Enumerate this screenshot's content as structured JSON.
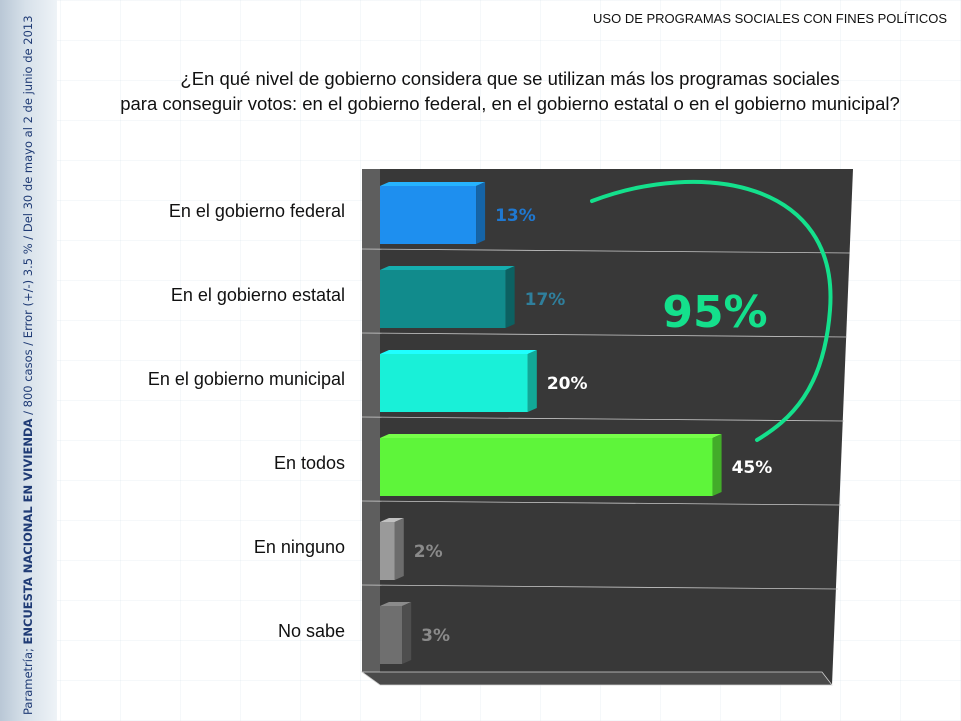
{
  "header": {
    "title": "USO DE PROGRAMAS SOCIALES CON FINES POLÍTICOS"
  },
  "sidebar": {
    "source_prefix": "Parametría; ",
    "survey_name": "ENCUESTA NACIONAL EN VIVIENDA",
    "details": " / 800 casos / Error (+/-) 3.5 % / Del 30 de mayo al 2  de junio de 2013"
  },
  "question": {
    "line1": "¿En qué nivel de gobierno considera que se utilizan más los programas sociales",
    "line2": "para conseguir votos: en el gobierno federal, en el gobierno estatal o en el gobierno municipal?"
  },
  "chart_data": {
    "type": "bar",
    "orientation": "horizontal",
    "categories": [
      "En el gobierno federal",
      "En el gobierno estatal",
      "En el gobierno municipal",
      "En todos",
      "En ninguno",
      "No sabe"
    ],
    "values": [
      13,
      17,
      20,
      45,
      2,
      3
    ],
    "value_labels": [
      "13%",
      "17%",
      "20%",
      "45%",
      "2%",
      "3%"
    ],
    "unit": "%",
    "colors": [
      "#1e8fef",
      "#118b8c",
      "#19f0d8",
      "#5ef53a",
      "#9a9a9a",
      "#6f6f6f"
    ],
    "label_colors": [
      "#1f78d1",
      "#2f7f9c",
      "#ffffff",
      "#ffffff",
      "#8a8a8a",
      "#8a8a8a"
    ],
    "xlim": [
      0,
      64
    ],
    "background": "#383838",
    "grid": true,
    "annotation": {
      "text": "95%",
      "color": "#14e08c"
    }
  }
}
